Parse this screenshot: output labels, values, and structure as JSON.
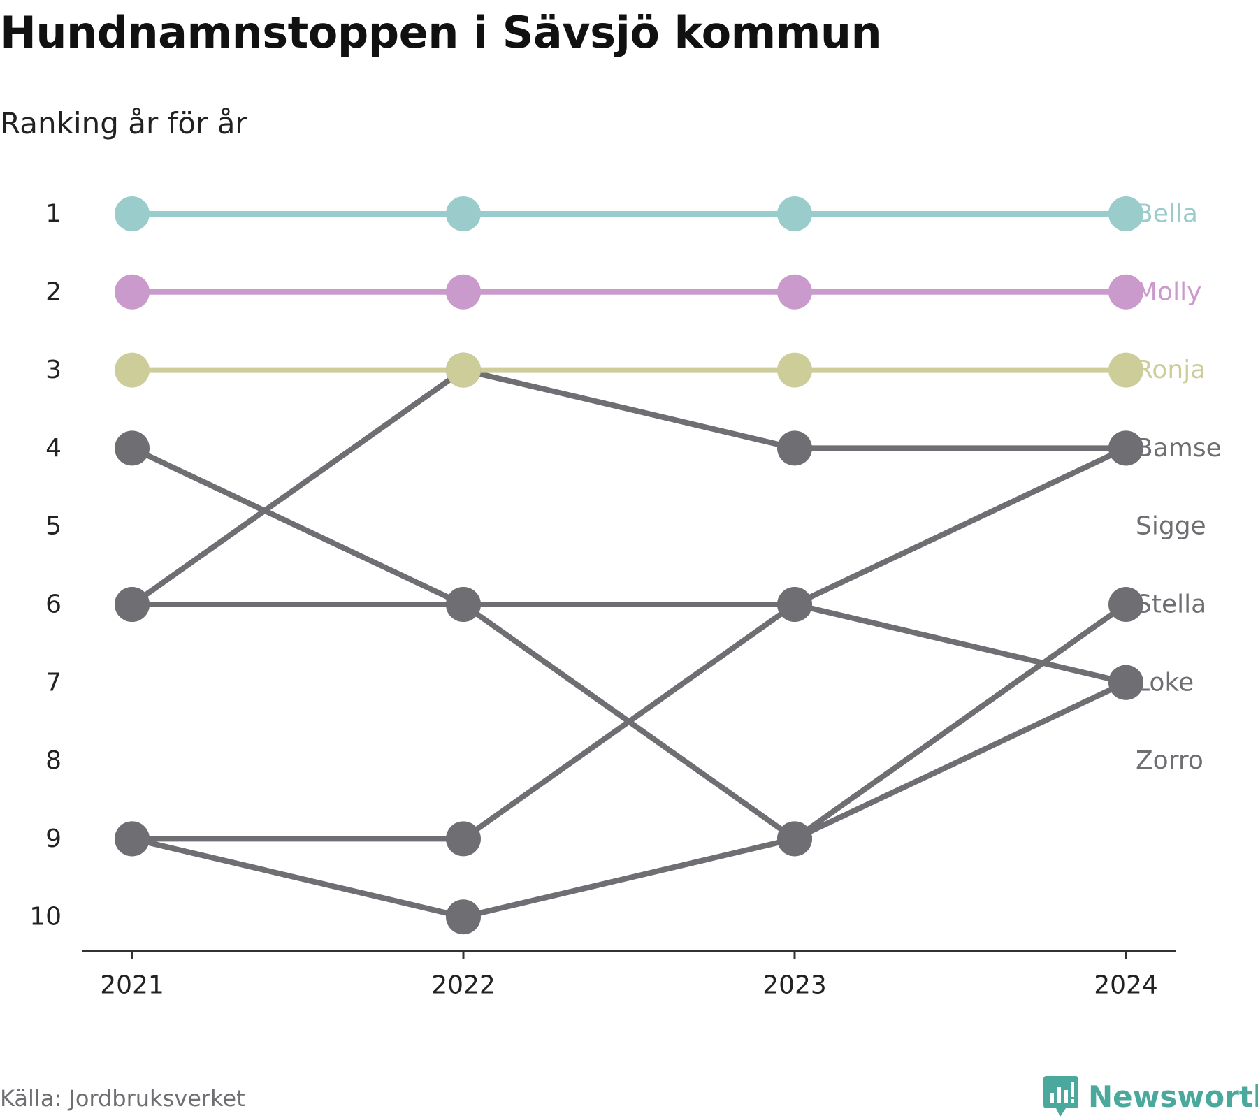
{
  "chart_data": {
    "type": "line",
    "title": "Hundnamnstoppen i Sävsjö kommun",
    "subtitle": "Ranking år för år",
    "x": [
      "2021",
      "2022",
      "2023",
      "2024"
    ],
    "y_ticks": [
      "1",
      "2",
      "3",
      "4",
      "5",
      "6",
      "7",
      "8",
      "9",
      "10"
    ],
    "ylim": [
      1,
      10
    ],
    "y_reversed": true,
    "grid": false,
    "series": [
      {
        "name": "Bella",
        "values": [
          1,
          1,
          1,
          1
        ],
        "color": "#9acccb"
      },
      {
        "name": "Molly",
        "values": [
          2,
          2,
          2,
          2
        ],
        "color": "#cb9acd"
      },
      {
        "name": "Ronja",
        "values": [
          3,
          3,
          3,
          3
        ],
        "color": "#cdcd9a"
      },
      {
        "name": "Bamse",
        "values": [
          6,
          3,
          4,
          4
        ],
        "color": "#6e6e73"
      },
      {
        "name": "Sigge",
        "values": [
          9,
          9,
          6,
          4
        ],
        "color": "#6e6e73"
      },
      {
        "name": "Stella",
        "values": [
          9,
          10,
          9,
          6
        ],
        "color": "#6e6e73"
      },
      {
        "name": "Loke",
        "values": [
          4,
          6,
          6,
          7
        ],
        "color": "#6e6e73"
      },
      {
        "name": "Zorro",
        "values": [
          6,
          6,
          9,
          7
        ],
        "color": "#6e6e73"
      }
    ]
  },
  "footer": {
    "source": "Källa: Jordbruksverket",
    "brand": "Newsworthy",
    "brand_color": "#4aa89c",
    "logo_icon": "bar-chart-speech-bubble-icon"
  }
}
